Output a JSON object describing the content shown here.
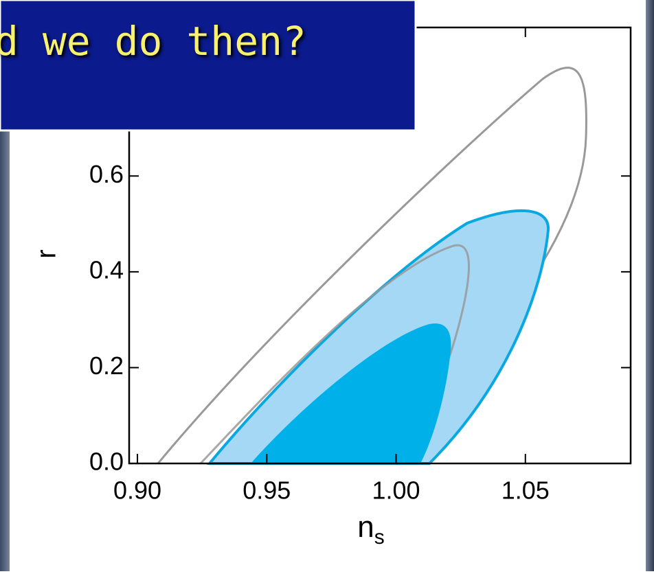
{
  "banner": {
    "text": "d we do then?"
  },
  "chart_data": {
    "type": "contour",
    "x_label": "n",
    "x_label_subscript": "s",
    "y_label": "r",
    "xlim": [
      0.8968,
      1.0907
    ],
    "ylim": [
      0,
      0.91
    ],
    "xticks": [
      {
        "value": 0.9,
        "label": "0.90"
      },
      0.95,
      {
        "value": 1.0,
        "label": "1.00"
      },
      1.05
    ],
    "yticks": [
      {
        "value": 0,
        "label": "0.0"
      },
      0.2,
      0.4,
      0.6
    ],
    "colors": {
      "outer": "#999999",
      "fill_68": "#00b0e8",
      "fill_95": "#a4d8f5",
      "edge": "#0aa8e0"
    }
  }
}
